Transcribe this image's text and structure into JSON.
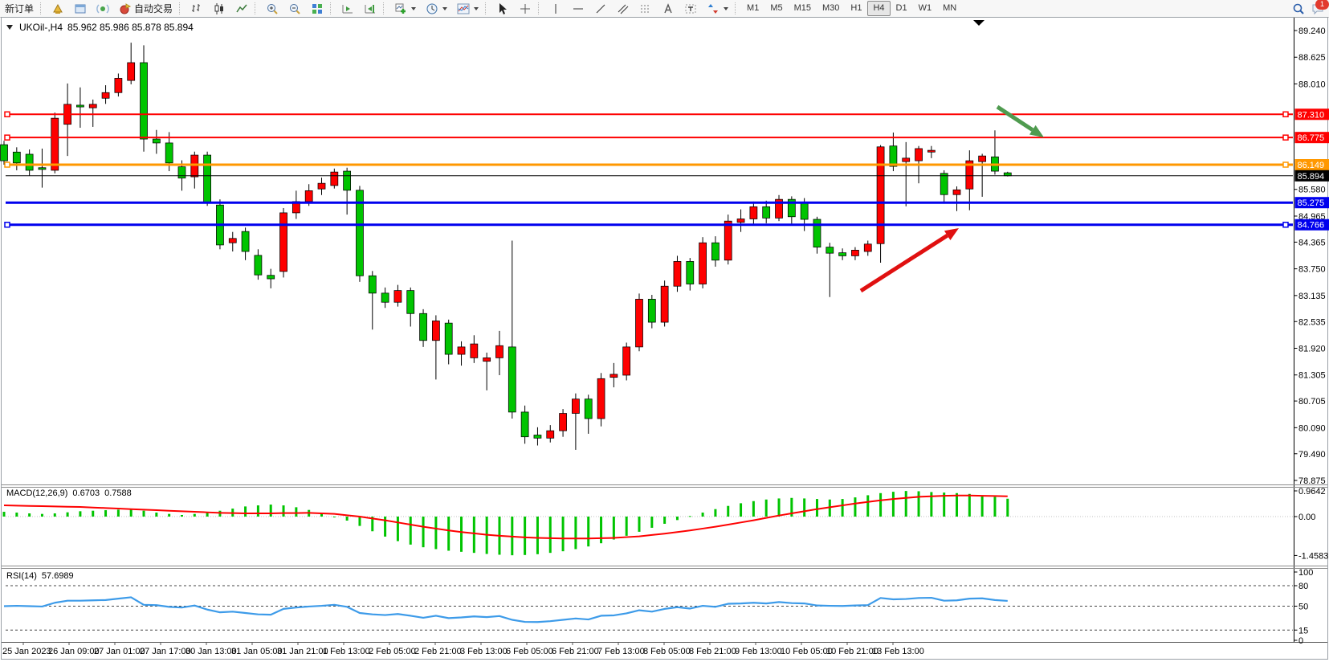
{
  "toolbar": {
    "new_order": "新订单",
    "auto_trading": "自动交易",
    "timeframes": [
      "M1",
      "M5",
      "M15",
      "M30",
      "H1",
      "H4",
      "D1",
      "W1",
      "MN"
    ],
    "active_timeframe": "H4",
    "chat_badge_count": "1"
  },
  "chart": {
    "symbol": "UKOil-,H4",
    "ohlc": "85.962 85.986 85.878 85.894"
  },
  "macd": {
    "label": "MACD(12,26,9)",
    "value": "0.6703",
    "signal_value": "0.7588"
  },
  "rsi": {
    "label": "RSI(14)",
    "value": "57.6989"
  },
  "chart_data": {
    "type": "candlestick",
    "symbol": "UKOil-",
    "timeframe": "H4",
    "current_ohlc": {
      "open": 85.962,
      "high": 85.986,
      "low": 85.878,
      "close": 85.894
    },
    "colors": {
      "bull": "#fe0000",
      "bear": "#00c400",
      "wick": "#000000",
      "macd_bar": "#00c400",
      "macd_signal": "#fe0000",
      "rsi_line": "#3d9be9",
      "axis": "#000000"
    },
    "price_axis": {
      "max": 89.24,
      "min": 78.875,
      "ticks": [
        "89.240",
        "88.625",
        "88.010",
        "85.580",
        "84.965",
        "84.365",
        "83.750",
        "83.135",
        "82.535",
        "81.920",
        "81.305",
        "80.705",
        "80.090",
        "79.490",
        "78.875"
      ]
    },
    "hlines": [
      {
        "price": 87.31,
        "label": "87.310",
        "color": "#fe0000",
        "width": 2,
        "handles": true
      },
      {
        "price": 86.775,
        "label": "86.775",
        "color": "#fe0000",
        "width": 2,
        "handles": true
      },
      {
        "price": 86.149,
        "label": "86.149",
        "color": "#ff9800",
        "width": 3,
        "handles": true
      },
      {
        "price": 85.275,
        "label": "85.275",
        "color": "#0000ee",
        "width": 3,
        "handles": false
      },
      {
        "price": 84.766,
        "label": "84.766",
        "color": "#0000ee",
        "width": 3,
        "handles": true
      }
    ],
    "current_price_line": {
      "price": 85.894,
      "label": "85.894",
      "color": "#000000"
    },
    "candles": [
      [
        86.61,
        86.7,
        86.15,
        86.24
      ],
      [
        86.44,
        86.55,
        86.02,
        86.19
      ],
      [
        86.39,
        86.5,
        85.9,
        86.02
      ],
      [
        86.08,
        86.52,
        85.62,
        86.04
      ],
      [
        86.02,
        87.35,
        85.95,
        87.22
      ],
      [
        87.08,
        88.02,
        86.35,
        87.54
      ],
      [
        87.52,
        87.93,
        87.0,
        87.48
      ],
      [
        87.46,
        87.65,
        87.02,
        87.54
      ],
      [
        87.68,
        87.98,
        87.55,
        87.81
      ],
      [
        87.81,
        88.25,
        87.72,
        88.14
      ],
      [
        88.09,
        88.96,
        88.0,
        88.5
      ],
      [
        88.5,
        88.9,
        86.45,
        86.74
      ],
      [
        86.74,
        86.95,
        86.4,
        86.65
      ],
      [
        86.65,
        86.9,
        86.0,
        86.19
      ],
      [
        86.1,
        86.25,
        85.55,
        85.84
      ],
      [
        85.87,
        86.45,
        85.6,
        86.37
      ],
      [
        86.37,
        86.45,
        85.2,
        85.26
      ],
      [
        85.22,
        85.35,
        84.2,
        84.3
      ],
      [
        84.35,
        84.6,
        84.15,
        84.45
      ],
      [
        84.61,
        84.7,
        83.95,
        84.15
      ],
      [
        84.06,
        84.2,
        83.5,
        83.61
      ],
      [
        83.6,
        83.75,
        83.3,
        83.52
      ],
      [
        83.69,
        85.15,
        83.55,
        85.04
      ],
      [
        85.04,
        85.55,
        84.9,
        85.3
      ],
      [
        85.3,
        85.7,
        85.2,
        85.55
      ],
      [
        85.59,
        85.85,
        85.45,
        85.72
      ],
      [
        85.67,
        86.06,
        85.6,
        85.98
      ],
      [
        86.0,
        86.08,
        85.0,
        85.56
      ],
      [
        85.56,
        85.66,
        83.45,
        83.59
      ],
      [
        83.59,
        83.7,
        82.35,
        83.19
      ],
      [
        83.19,
        83.32,
        82.85,
        82.98
      ],
      [
        82.98,
        83.38,
        82.88,
        83.25
      ],
      [
        83.25,
        83.32,
        82.42,
        82.72
      ],
      [
        82.72,
        82.82,
        81.95,
        82.1
      ],
      [
        82.1,
        82.68,
        81.2,
        82.55
      ],
      [
        82.5,
        82.58,
        81.55,
        81.78
      ],
      [
        81.78,
        82.08,
        81.52,
        81.95
      ],
      [
        81.7,
        82.22,
        81.58,
        82.02
      ],
      [
        81.62,
        81.82,
        80.95,
        81.7
      ],
      [
        81.7,
        82.32,
        81.3,
        81.98
      ],
      [
        81.95,
        84.4,
        80.3,
        80.45
      ],
      [
        80.45,
        80.6,
        79.72,
        79.88
      ],
      [
        79.92,
        80.1,
        79.68,
        79.85
      ],
      [
        79.85,
        80.15,
        79.75,
        80.02
      ],
      [
        80.02,
        80.52,
        79.88,
        80.42
      ],
      [
        80.42,
        80.88,
        79.58,
        80.75
      ],
      [
        80.75,
        80.85,
        79.95,
        80.3
      ],
      [
        80.3,
        81.35,
        80.12,
        81.22
      ],
      [
        81.25,
        81.58,
        81.02,
        81.32
      ],
      [
        81.3,
        82.05,
        81.18,
        81.95
      ],
      [
        81.95,
        83.18,
        81.85,
        83.05
      ],
      [
        83.05,
        83.15,
        82.38,
        82.52
      ],
      [
        82.52,
        83.48,
        82.42,
        83.35
      ],
      [
        83.35,
        84.05,
        83.22,
        83.92
      ],
      [
        83.92,
        84.0,
        83.25,
        83.4
      ],
      [
        83.4,
        84.48,
        83.3,
        84.35
      ],
      [
        84.35,
        84.5,
        83.8,
        83.95
      ],
      [
        83.95,
        85.0,
        83.85,
        84.85
      ],
      [
        84.82,
        85.12,
        84.6,
        84.9
      ],
      [
        84.9,
        85.3,
        84.78,
        85.18
      ],
      [
        85.18,
        85.32,
        84.8,
        84.92
      ],
      [
        84.92,
        85.45,
        84.85,
        85.35
      ],
      [
        85.35,
        85.42,
        84.75,
        84.95
      ],
      [
        85.28,
        85.38,
        84.62,
        84.89
      ],
      [
        84.89,
        84.95,
        84.1,
        84.25
      ],
      [
        84.25,
        84.35,
        83.1,
        84.11
      ],
      [
        84.12,
        84.22,
        83.95,
        84.05
      ],
      [
        84.05,
        84.25,
        83.95,
        84.18
      ],
      [
        84.15,
        84.4,
        84.05,
        84.32
      ],
      [
        84.33,
        86.6,
        83.89,
        86.56
      ],
      [
        86.58,
        86.89,
        86.0,
        86.11
      ],
      [
        86.22,
        86.67,
        85.19,
        86.3
      ],
      [
        86.24,
        86.58,
        85.72,
        86.52
      ],
      [
        86.44,
        86.58,
        86.3,
        86.48
      ],
      [
        85.95,
        86.02,
        85.25,
        85.46
      ],
      [
        85.46,
        85.65,
        85.08,
        85.57
      ],
      [
        85.59,
        86.48,
        85.1,
        86.24
      ],
      [
        86.22,
        86.4,
        85.41,
        86.35
      ],
      [
        86.33,
        86.94,
        85.92,
        86.0
      ],
      [
        85.962,
        85.986,
        85.878,
        85.894
      ]
    ],
    "time_labels": [
      "25 Jan 2023",
      "26 Jan 09:00",
      "27 Jan 01:00",
      "27 Jan 17:00",
      "30 Jan 13:00",
      "31 Jan 05:00",
      "31 Jan 21:00",
      "1 Feb 13:00",
      "2 Feb 05:00",
      "2 Feb 21:00",
      "3 Feb 13:00",
      "6 Feb 05:00",
      "6 Feb 21:00",
      "7 Feb 13:00",
      "8 Feb 05:00",
      "8 Feb 21:00",
      "9 Feb 13:00",
      "10 Feb 05:00",
      "10 Feb 21:00",
      "13 Feb 13:00"
    ],
    "macd": {
      "label": "MACD(12,26,9)",
      "value": 0.6703,
      "signal_value": 0.7588,
      "axis_ticks": [
        {
          "v": 0.9642,
          "label": "0.9642"
        },
        {
          "v": 0,
          "label": "0.00"
        },
        {
          "v": -1.4583,
          "label": "-1.4583"
        }
      ],
      "histogram": [
        0.18,
        0.15,
        0.12,
        0.1,
        0.12,
        0.16,
        0.2,
        0.22,
        0.24,
        0.26,
        0.28,
        0.22,
        0.15,
        0.1,
        0.06,
        0.1,
        0.16,
        0.22,
        0.3,
        0.38,
        0.42,
        0.45,
        0.42,
        0.35,
        0.25,
        0.12,
        0.0,
        -0.15,
        -0.35,
        -0.55,
        -0.75,
        -0.92,
        -1.05,
        -1.15,
        -1.22,
        -1.28,
        -1.32,
        -1.36,
        -1.4,
        -1.43,
        -1.45,
        -1.44,
        -1.41,
        -1.36,
        -1.3,
        -1.22,
        -1.12,
        -1.0,
        -0.86,
        -0.72,
        -0.57,
        -0.42,
        -0.27,
        -0.13,
        0.02,
        0.15,
        0.28,
        0.4,
        0.5,
        0.58,
        0.64,
        0.68,
        0.7,
        0.68,
        0.66,
        0.64,
        0.66,
        0.72,
        0.8,
        0.88,
        0.93,
        0.96,
        0.95,
        0.92,
        0.9,
        0.88,
        0.85,
        0.8,
        0.74,
        0.67
      ],
      "signal": [
        0.42,
        0.41,
        0.4,
        0.39,
        0.38,
        0.37,
        0.36,
        0.34,
        0.32,
        0.3,
        0.28,
        0.26,
        0.24,
        0.22,
        0.2,
        0.18,
        0.16,
        0.14,
        0.13,
        0.12,
        0.12,
        0.12,
        0.13,
        0.13,
        0.14,
        0.12,
        0.1,
        0.05,
        0.0,
        -0.07,
        -0.14,
        -0.22,
        -0.3,
        -0.38,
        -0.45,
        -0.52,
        -0.58,
        -0.63,
        -0.68,
        -0.72,
        -0.75,
        -0.78,
        -0.8,
        -0.81,
        -0.82,
        -0.82,
        -0.82,
        -0.81,
        -0.8,
        -0.77,
        -0.74,
        -0.69,
        -0.64,
        -0.58,
        -0.52,
        -0.45,
        -0.38,
        -0.3,
        -0.22,
        -0.14,
        -0.05,
        0.04,
        0.12,
        0.2,
        0.28,
        0.35,
        0.42,
        0.49,
        0.55,
        0.61,
        0.66,
        0.7,
        0.74,
        0.76,
        0.78,
        0.79,
        0.79,
        0.78,
        0.77,
        0.76
      ]
    },
    "rsi": {
      "label": "RSI(14)",
      "value": 57.6989,
      "axis_ticks": [
        {
          "v": 100,
          "label": "100"
        },
        {
          "v": 80,
          "label": "80"
        },
        {
          "v": 50,
          "label": "50"
        },
        {
          "v": 15,
          "label": "15"
        },
        {
          "v": 0,
          "label": "0"
        }
      ],
      "levels": [
        80,
        50,
        15
      ],
      "values": [
        50,
        50.5,
        50,
        49.5,
        55,
        58,
        58,
        58.5,
        59,
        61,
        63,
        52,
        51.5,
        49,
        48,
        51,
        45,
        41,
        42,
        40,
        38,
        37.5,
        46,
        48,
        49.5,
        50.5,
        52,
        49,
        40,
        38,
        37,
        38.5,
        36,
        33,
        36,
        32.5,
        33.5,
        35,
        34,
        35.5,
        30,
        27,
        26.8,
        28,
        30,
        32,
        30.5,
        36,
        36.5,
        39.5,
        44,
        42,
        46,
        48.5,
        46.5,
        50.5,
        49,
        53.5,
        54,
        55,
        54,
        56,
        54.5,
        54,
        51,
        50.5,
        50.3,
        51,
        51.5,
        62,
        60,
        60.5,
        62,
        62.3,
        58,
        58.5,
        61,
        61.5,
        59,
        57.7
      ]
    },
    "annotations": [
      {
        "name": "bullish-arrow",
        "color": "#e01010",
        "from": [
          1072,
          362
        ],
        "to": [
          1194,
          284
        ]
      },
      {
        "name": "bearish-arrow",
        "color": "#4f9b4f",
        "from": [
          1242,
          133
        ],
        "to": [
          1300,
          171
        ]
      }
    ]
  }
}
